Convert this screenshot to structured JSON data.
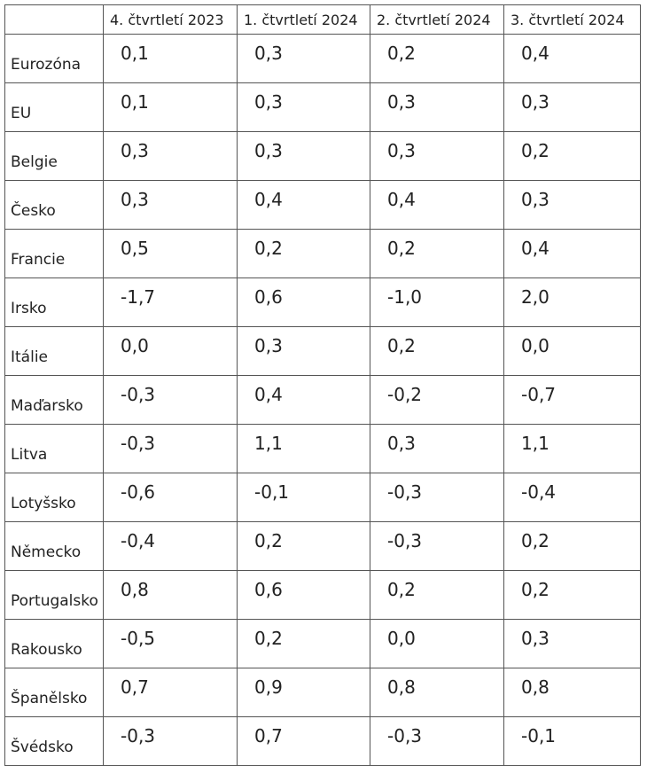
{
  "table": {
    "headers": [
      "4. čtvrtletí 2023",
      "1. čtvrtletí 2024",
      "2. čtvrtletí 2024",
      "3. čtvrtletí 2024"
    ],
    "rows": [
      {
        "label": "Eurozóna",
        "values": [
          "0,1",
          "0,3",
          "0,2",
          "0,4"
        ]
      },
      {
        "label": "EU",
        "values": [
          "0,1",
          "0,3",
          "0,3",
          "0,3"
        ]
      },
      {
        "label": "Belgie",
        "values": [
          "0,3",
          "0,3",
          "0,3",
          "0,2"
        ]
      },
      {
        "label": "Česko",
        "values": [
          "0,3",
          "0,4",
          "0,4",
          "0,3"
        ]
      },
      {
        "label": "Francie",
        "values": [
          "0,5",
          "0,2",
          "0,2",
          "0,4"
        ]
      },
      {
        "label": "Irsko",
        "values": [
          "-1,7",
          "0,6",
          "-1,0",
          "2,0"
        ]
      },
      {
        "label": "Itálie",
        "values": [
          "0,0",
          "0,3",
          "0,2",
          "0,0"
        ]
      },
      {
        "label": "Maďarsko",
        "values": [
          "-0,3",
          "0,4",
          "-0,2",
          "-0,7"
        ]
      },
      {
        "label": "Litva",
        "values": [
          "-0,3",
          "1,1",
          "0,3",
          "1,1"
        ]
      },
      {
        "label": "Lotyšsko",
        "values": [
          "-0,6",
          "-0,1",
          "-0,3",
          "-0,4"
        ]
      },
      {
        "label": "Německo",
        "values": [
          "-0,4",
          "0,2",
          "-0,3",
          "0,2"
        ]
      },
      {
        "label": "Portugalsko",
        "values": [
          "0,8",
          "0,6",
          "0,2",
          "0,2"
        ]
      },
      {
        "label": "Rakousko",
        "values": [
          "-0,5",
          "0,2",
          "0,0",
          "0,3"
        ]
      },
      {
        "label": "Španělsko",
        "values": [
          "0,7",
          "0,9",
          "0,8",
          "0,8"
        ]
      },
      {
        "label": "Švédsko",
        "values": [
          "-0,3",
          "0,7",
          "-0,3",
          "-0,1"
        ]
      }
    ]
  }
}
